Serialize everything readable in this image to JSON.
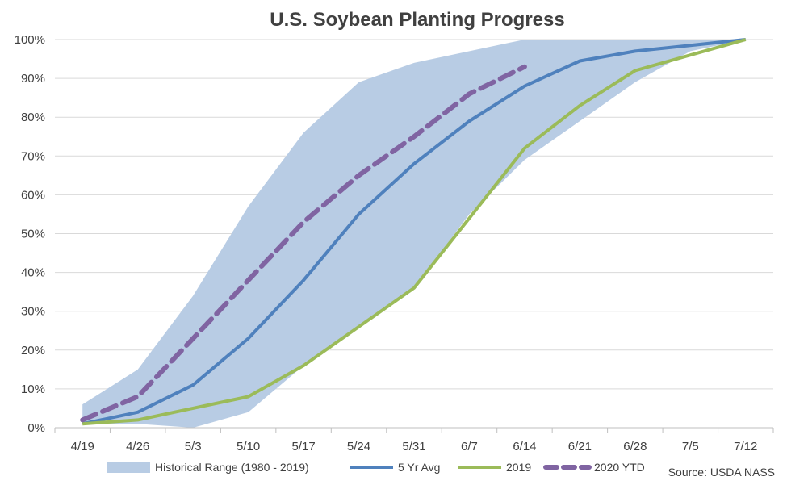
{
  "chart_data": {
    "type": "line",
    "title": "U.S. Soybean Planting Progress",
    "xlabel": "",
    "ylabel": "",
    "categories": [
      "4/19",
      "4/26",
      "5/3",
      "5/10",
      "5/17",
      "5/24",
      "5/31",
      "6/7",
      "6/14",
      "6/21",
      "6/28",
      "7/5",
      "7/12"
    ],
    "ylim": [
      0,
      100
    ],
    "yticks": [
      0,
      10,
      20,
      30,
      40,
      50,
      60,
      70,
      80,
      90,
      100
    ],
    "ytick_labels": [
      "0%",
      "10%",
      "20%",
      "30%",
      "40%",
      "50%",
      "60%",
      "70%",
      "80%",
      "90%",
      "100%"
    ],
    "grid": "horizontal",
    "legend_position": "bottom",
    "range": {
      "name": "Historical Range (1980 - 2019)",
      "color": "#b8cce4",
      "low": [
        1,
        1,
        0,
        4,
        16,
        26,
        36,
        55,
        69,
        79,
        89,
        97,
        100
      ],
      "high": [
        6,
        15,
        34,
        57,
        76,
        89,
        94,
        97,
        100,
        100,
        100,
        100,
        100
      ]
    },
    "series": [
      {
        "name": "5 Yr Avg",
        "color": "#4f81bd",
        "dash": "solid",
        "values": [
          1,
          4,
          11,
          23,
          38,
          55,
          68,
          79,
          88,
          94.5,
          97,
          98.5,
          100
        ]
      },
      {
        "name": "2019",
        "color": "#9bbb59",
        "dash": "solid",
        "values": [
          1,
          2,
          5,
          8,
          16,
          26,
          36,
          54,
          72,
          83,
          92,
          96,
          100
        ]
      },
      {
        "name": "2020 YTD",
        "color": "#8064a2",
        "dash": "dashed",
        "values": [
          2,
          8,
          23,
          38,
          53,
          65,
          75,
          86,
          93,
          null,
          null,
          null,
          null
        ]
      }
    ],
    "source": "Source: USDA NASS"
  }
}
